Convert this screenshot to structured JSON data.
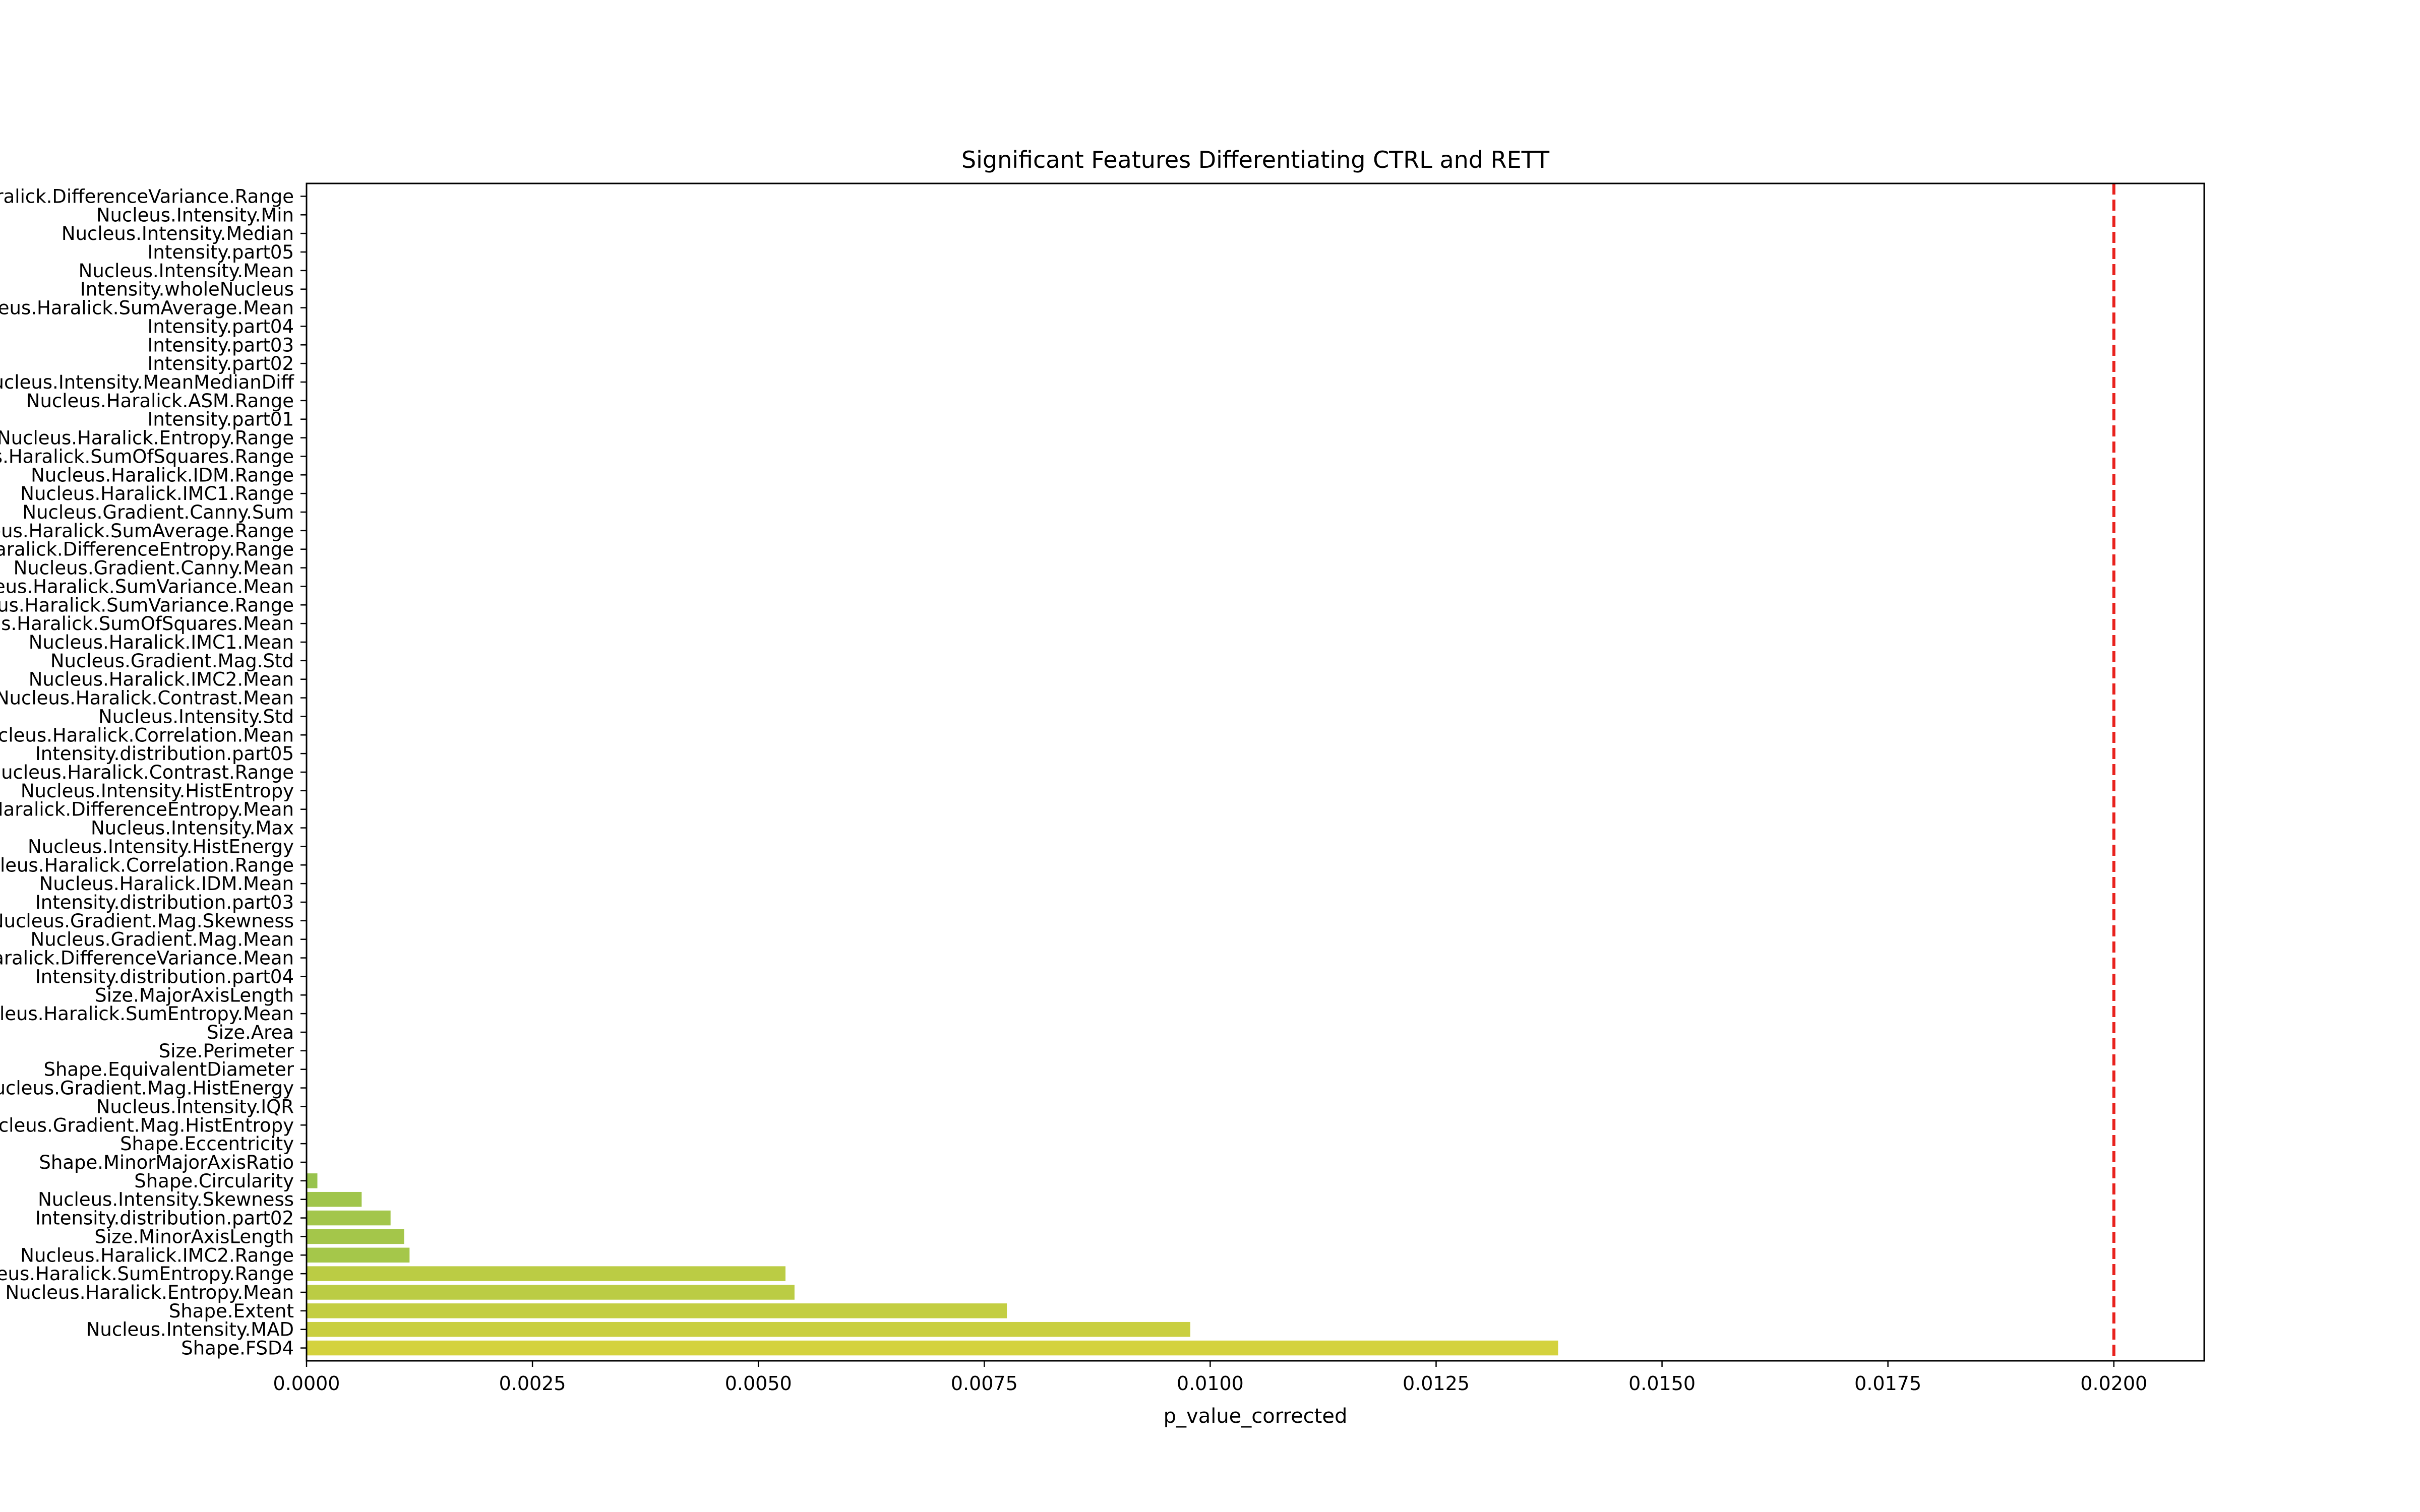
{
  "chart_data": {
    "type": "bar",
    "orientation": "horizontal",
    "title": "Significant Features Differentiating CTRL and RETT",
    "xlabel": "p_value_corrected",
    "ylabel": "",
    "xlim": [
      0,
      0.021
    ],
    "xticks": [
      "0.0000",
      "0.0025",
      "0.0050",
      "0.0075",
      "0.0100",
      "0.0125",
      "0.0150",
      "0.0175",
      "0.0200"
    ],
    "xtick_values": [
      0,
      0.0025,
      0.005,
      0.0075,
      0.01,
      0.0125,
      0.015,
      0.0175,
      0.02
    ],
    "threshold": {
      "value": 0.02,
      "style": "dashed",
      "color": "#e8211d"
    },
    "grid": false,
    "legend": "none",
    "categories": [
      "Nucleus.Haralick.DifferenceVariance.Range",
      "Nucleus.Intensity.Min",
      "Nucleus.Intensity.Median",
      "Intensity.part05",
      "Nucleus.Intensity.Mean",
      "Intensity.wholeNucleus",
      "Nucleus.Haralick.SumAverage.Mean",
      "Intensity.part04",
      "Intensity.part03",
      "Intensity.part02",
      "Nucleus.Intensity.MeanMedianDiff",
      "Nucleus.Haralick.ASM.Range",
      "Intensity.part01",
      "Nucleus.Haralick.Entropy.Range",
      "Nucleus.Haralick.SumOfSquares.Range",
      "Nucleus.Haralick.IDM.Range",
      "Nucleus.Haralick.IMC1.Range",
      "Nucleus.Gradient.Canny.Sum",
      "Nucleus.Haralick.SumAverage.Range",
      "Nucleus.Haralick.DifferenceEntropy.Range",
      "Nucleus.Gradient.Canny.Mean",
      "Nucleus.Haralick.SumVariance.Mean",
      "Nucleus.Haralick.SumVariance.Range",
      "Nucleus.Haralick.SumOfSquares.Mean",
      "Nucleus.Haralick.IMC1.Mean",
      "Nucleus.Gradient.Mag.Std",
      "Nucleus.Haralick.IMC2.Mean",
      "Nucleus.Haralick.Contrast.Mean",
      "Nucleus.Intensity.Std",
      "Nucleus.Haralick.Correlation.Mean",
      "Intensity.distribution.part05",
      "Nucleus.Haralick.Contrast.Range",
      "Nucleus.Intensity.HistEntropy",
      "Nucleus.Haralick.DifferenceEntropy.Mean",
      "Nucleus.Intensity.Max",
      "Nucleus.Intensity.HistEnergy",
      "Nucleus.Haralick.Correlation.Range",
      "Nucleus.Haralick.IDM.Mean",
      "Intensity.distribution.part03",
      "Nucleus.Gradient.Mag.Skewness",
      "Nucleus.Gradient.Mag.Mean",
      "Nucleus.Haralick.DifferenceVariance.Mean",
      "Intensity.distribution.part04",
      "Size.MajorAxisLength",
      "Nucleus.Haralick.SumEntropy.Mean",
      "Size.Area",
      "Size.Perimeter",
      "Shape.EquivalentDiameter",
      "Nucleus.Gradient.Mag.HistEnergy",
      "Nucleus.Intensity.IQR",
      "Nucleus.Gradient.Mag.HistEntropy",
      "Shape.Eccentricity",
      "Shape.MinorMajorAxisRatio",
      "Shape.Circularity",
      "Nucleus.Intensity.Skewness",
      "Intensity.distribution.part02",
      "Size.MinorAxisLength",
      "Nucleus.Haralick.IMC2.Range",
      "Nucleus.Haralick.SumEntropy.Range",
      "Nucleus.Haralick.Entropy.Mean",
      "Shape.Extent",
      "Nucleus.Intensity.MAD",
      "Shape.FSD4"
    ],
    "values": [
      0,
      0,
      0,
      0,
      0,
      0,
      0,
      0,
      0,
      0,
      0,
      0,
      0,
      0,
      0,
      0,
      0,
      0,
      0,
      0,
      0,
      0,
      0,
      0,
      0,
      0,
      0,
      0,
      0,
      0,
      0,
      0,
      0,
      0,
      0,
      0,
      0,
      0,
      0,
      0,
      0,
      0,
      0,
      0,
      0,
      0,
      0,
      0,
      0,
      0,
      0,
      0,
      0,
      0.00012,
      0.00061,
      0.00093,
      0.00108,
      0.00114,
      0.0053,
      0.0054,
      0.00775,
      0.00978,
      0.01385
    ],
    "colors": {
      "bar_low": "#92c24f",
      "bar_high": "#d4d23e",
      "threshold": "#e8211d",
      "axes": "#000000"
    }
  }
}
